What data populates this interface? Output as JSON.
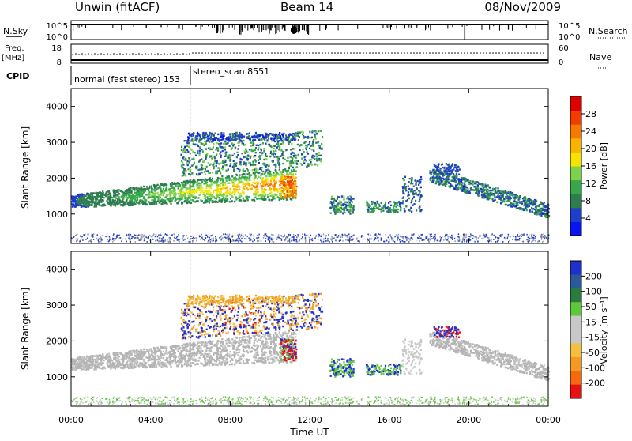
{
  "header": {
    "station": "Unwin (fitACF)",
    "beam": "Beam 14",
    "date": "08/Nov/2009"
  },
  "strips": {
    "nsky_label": "N.Sky",
    "nsky_ticks": [
      "10^5",
      "10^0"
    ],
    "nsearch_label": "N.Search",
    "freq_label_1": "Freq.",
    "freq_label_2": "[MHz]",
    "freq_ticks": [
      "18",
      "8"
    ],
    "nave_label": "Nave",
    "nave_ticks": [
      "60",
      "0"
    ],
    "cpid_label": "CPID",
    "cpid_segments": [
      {
        "text": "normal (fast stereo) 153",
        "start_hour": 0
      },
      {
        "text": "stereo_scan 8551",
        "start_hour": 6
      }
    ]
  },
  "colors": {
    "power_scale": [
      "#0a14f0",
      "#1f3fc8",
      "#2e7d4f",
      "#37a84a",
      "#7fd14a",
      "#f4e400",
      "#f9b300",
      "#f77a00",
      "#f23c00",
      "#e10000"
    ],
    "velocity_scale": [
      "#1f2fd0",
      "#2a5a9a",
      "#2d7a40",
      "#5ec83a",
      "#c8c8c8",
      "#c8c8c8",
      "#f5c040",
      "#f59a20",
      "#f56a10",
      "#e81010"
    ],
    "ground_scatter": "#b4b4b4"
  },
  "chart_data": [
    {
      "type": "heatmap",
      "name": "power",
      "ylabel": "Slant Range [km]",
      "xlabel": "",
      "xlim_hours": [
        0,
        24
      ],
      "ylim": [
        180,
        4500
      ],
      "yticks": [
        "1000",
        "2000",
        "3000",
        "4000"
      ],
      "colorbar_label": "Power [dB]",
      "colorbar_ticks": [
        "4",
        "8",
        "12",
        "16",
        "20",
        "24",
        "28"
      ],
      "colorbar_range": [
        0,
        32
      ]
    },
    {
      "type": "heatmap",
      "name": "velocity",
      "ylabel": "Slant Range [km]",
      "xlabel": "Time UT",
      "xlim_hours": [
        0,
        24
      ],
      "ylim": [
        180,
        4500
      ],
      "yticks": [
        "1000",
        "2000",
        "3000",
        "4000"
      ],
      "xticks": [
        "00:00",
        "04:00",
        "08:00",
        "12:00",
        "16:00",
        "20:00",
        "00:00"
      ],
      "colorbar_label": "Velocity [m s⁻¹]",
      "colorbar_ticks": [
        "200",
        "100",
        "50",
        "15",
        "-15",
        "-50",
        "-100",
        "-200"
      ]
    }
  ]
}
